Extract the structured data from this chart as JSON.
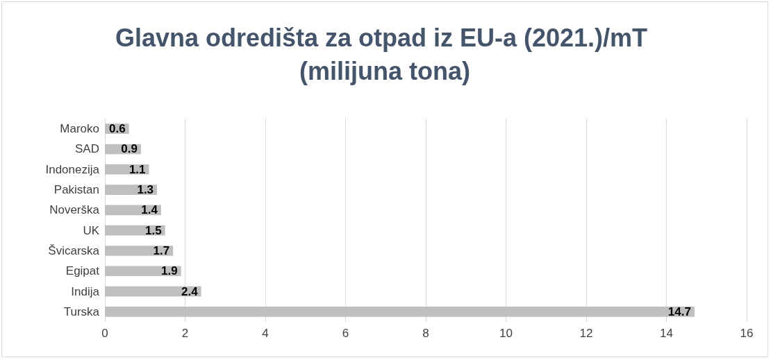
{
  "chart_data": {
    "type": "bar",
    "orientation": "horizontal",
    "title": "Glavna odredišta za otpad iz EU-a (2021.)/mT (milijuna tona)",
    "categories": [
      "Maroko",
      "SAD",
      "Indonezija",
      "Pakistan",
      "Noverška",
      "UK",
      "Švicarska",
      "Egipat",
      "Indija",
      "Turska"
    ],
    "values": [
      0.6,
      0.9,
      1.1,
      1.3,
      1.4,
      1.5,
      1.7,
      1.9,
      2.4,
      14.7
    ],
    "color": "#bfbfbf",
    "xlim": [
      0,
      16
    ],
    "xticks": [
      0,
      2,
      4,
      6,
      8,
      10,
      12,
      14,
      16
    ],
    "grid": "x",
    "data_labels": true
  }
}
